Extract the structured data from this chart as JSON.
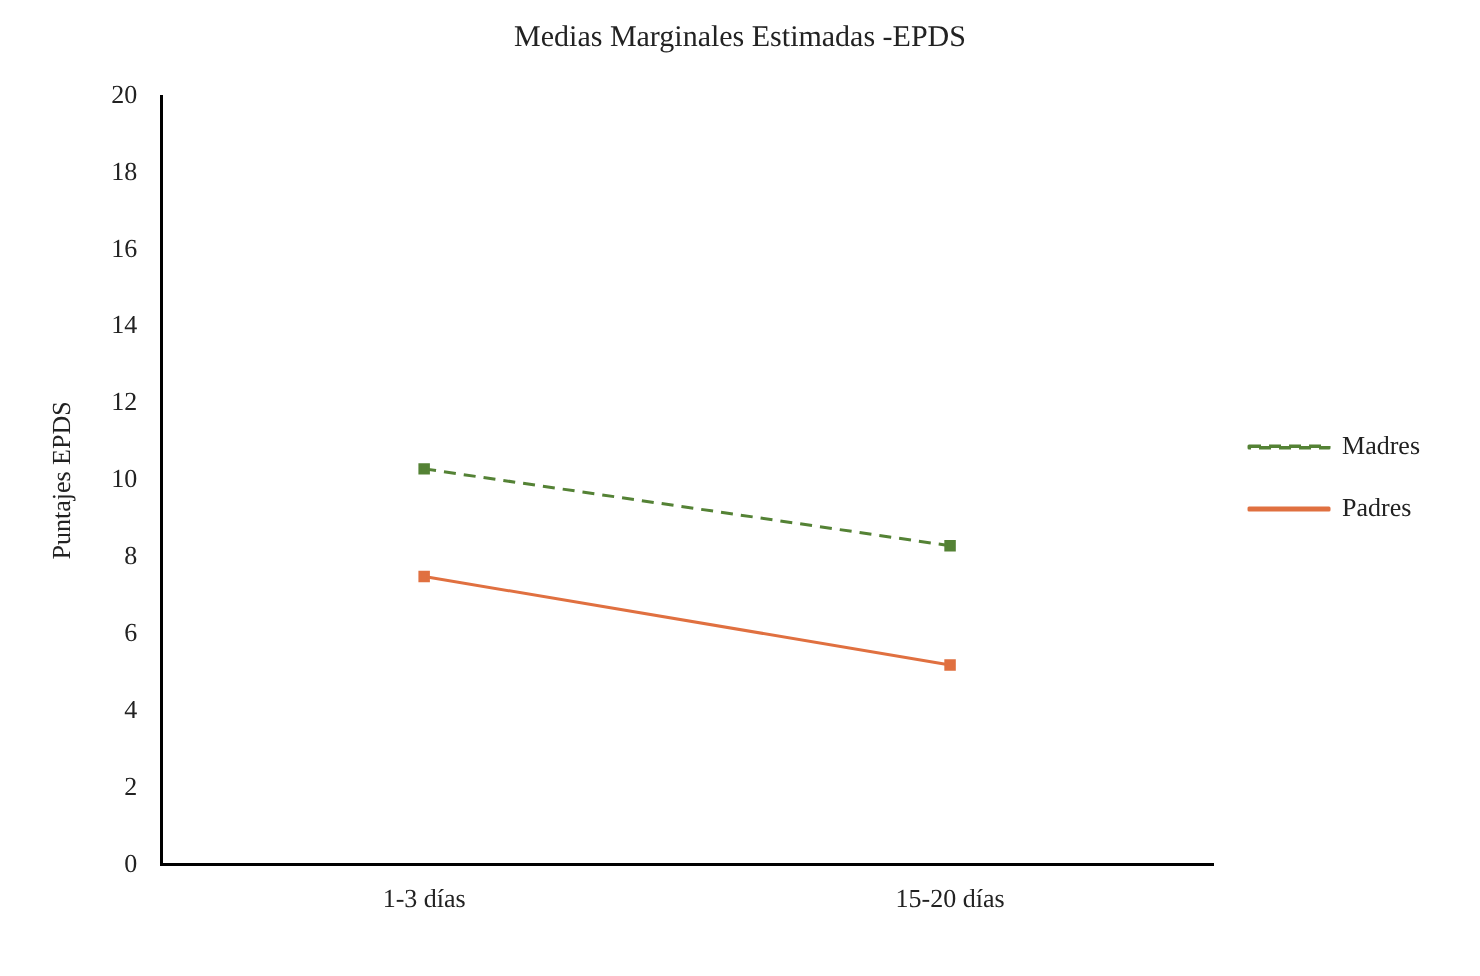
{
  "chart_data": {
    "type": "line",
    "title": "Medias Marginales Estimadas -EPDS",
    "ylabel": "Puntajes EPDS",
    "categories": [
      "1-3 días",
      "15-20 días"
    ],
    "series": [
      {
        "name": "Madres",
        "color": "#548235",
        "values": [
          10.3,
          8.3
        ],
        "line_style": "dashed"
      },
      {
        "name": "Padres",
        "color": "#e07040",
        "values": [
          7.5,
          5.2
        ],
        "line_style": "solid"
      }
    ],
    "ylim": [
      0,
      20
    ],
    "yticks": [
      0,
      2,
      4,
      6,
      8,
      10,
      12,
      14,
      16,
      18,
      20
    ],
    "grid": false,
    "legend": "right",
    "marker": "square"
  }
}
